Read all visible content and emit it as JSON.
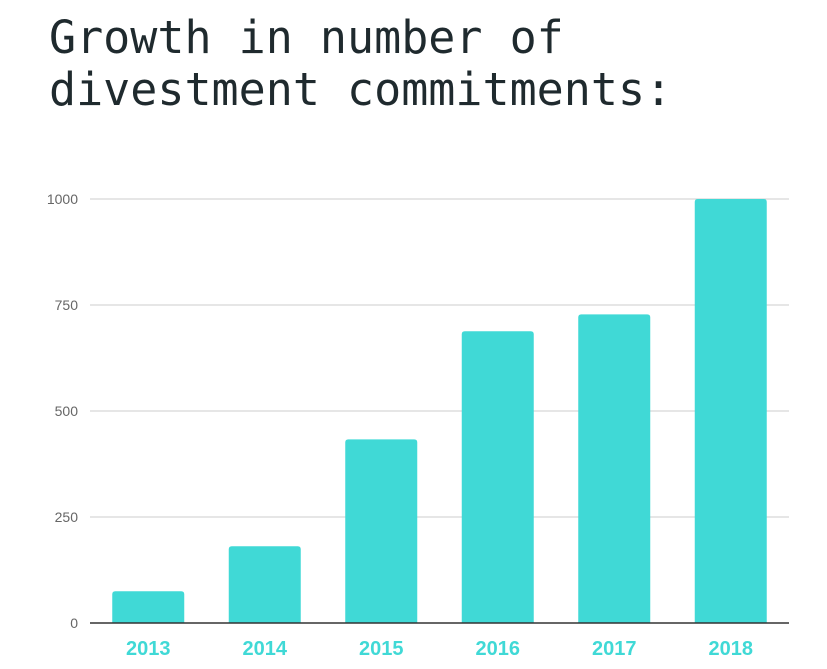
{
  "title": {
    "line1": "Growth in number of",
    "line2": "divestment commitments:"
  },
  "colors": {
    "bar": "#40d9d6",
    "xtick": "#40d9d6",
    "grid": "#cccccc",
    "axis": "#333333"
  },
  "chart_data": {
    "type": "bar",
    "title": "Growth in number of divestment commitments:",
    "xlabel": "",
    "ylabel": "",
    "categories": [
      "2013",
      "2014",
      "2015",
      "2016",
      "2017",
      "2018"
    ],
    "values": [
      75,
      181,
      433,
      688,
      728,
      1000
    ],
    "ylim": [
      0,
      1000
    ],
    "yticks": [
      0,
      250,
      500,
      750,
      1000
    ],
    "ytick_labels": [
      "0",
      "250",
      "500",
      "750",
      "1000"
    ],
    "grid": true,
    "legend": "none"
  }
}
